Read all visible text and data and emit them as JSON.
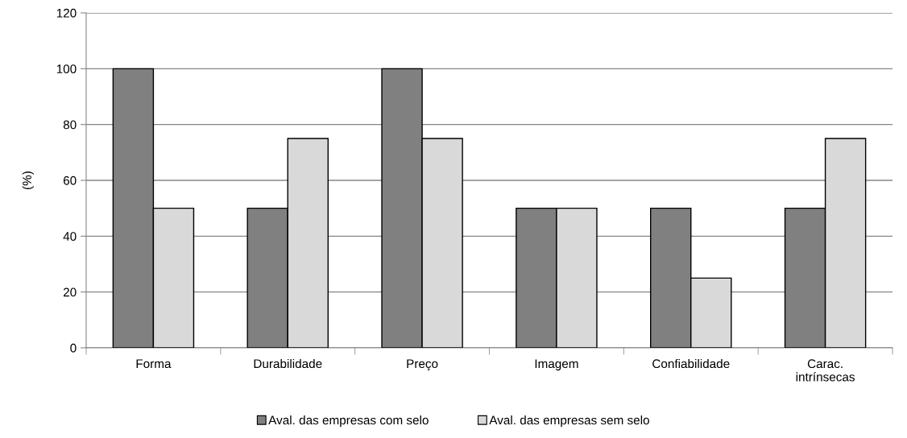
{
  "chart_data": {
    "type": "bar",
    "ylabel": "(%)",
    "categories": [
      "Forma",
      "Durabilidade",
      "Preço",
      "Imagem",
      "Confiabilidade",
      "Carac.\nintrínsecas"
    ],
    "series": [
      {
        "name": "Aval. das empresas com selo",
        "color": "#808080",
        "values": [
          100,
          50,
          100,
          50,
          50,
          50
        ]
      },
      {
        "name": "Aval. das empresas sem selo",
        "color": "#d9d9d9",
        "values": [
          50,
          75,
          75,
          50,
          25,
          75
        ]
      }
    ],
    "ylim": [
      0,
      120
    ],
    "yticks": [
      0,
      20,
      40,
      60,
      80,
      100,
      120
    ],
    "grid": "y",
    "legend": "bottom"
  }
}
